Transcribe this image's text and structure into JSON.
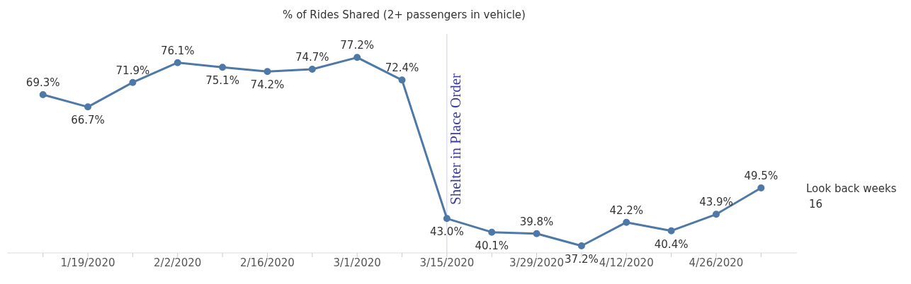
{
  "chart_data": {
    "type": "line",
    "title": "% of Rides Shared (2+ passengers in vehicle)",
    "categories": [
      null,
      "1/19/2020",
      null,
      "2/2/2020",
      null,
      "2/16/2020",
      null,
      "3/1/2020",
      null,
      "3/15/2020",
      null,
      "3/29/2020",
      null,
      "4/12/2020",
      null,
      "4/26/2020",
      null
    ],
    "series": [
      {
        "color": "#4e79a7",
        "values": [
          69.3,
          66.7,
          71.9,
          76.1,
          75.1,
          74.2,
          74.7,
          77.2,
          72.4,
          43.0,
          40.1,
          39.8,
          37.2,
          42.2,
          40.4,
          43.9,
          49.5
        ],
        "value_labels": [
          "69.3%",
          "66.7%",
          "71.9%",
          "76.1%",
          "75.1%",
          "74.2%",
          "74.7%",
          "77.2%",
          "72.4%",
          "43.0%",
          "40.1%",
          "39.8%",
          "37.2%",
          "42.2%",
          "40.4%",
          "43.9%",
          "49.5%"
        ]
      }
    ],
    "ref_lines": [
      {
        "axis": "x",
        "value": "3/15/2020",
        "label": "Shelter in Place Order",
        "color": "#3c3c9c"
      }
    ],
    "marker": "circle",
    "annotations": [
      "Look back weeks",
      "16"
    ]
  }
}
